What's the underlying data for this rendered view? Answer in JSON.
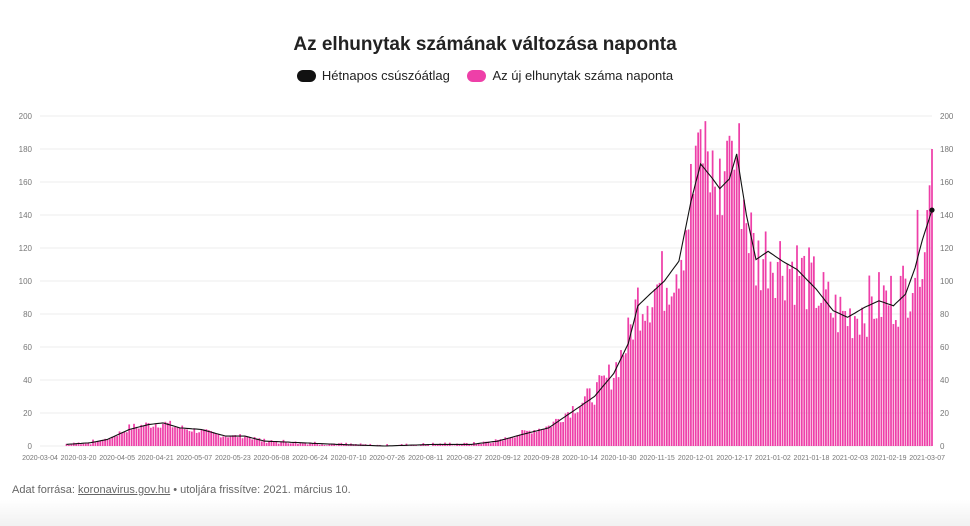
{
  "title": "Az elhunytak számának változása naponta",
  "legend": {
    "avg_label": "Hétnapos csúszóátlag",
    "daily_label": "Az új elhunytak száma naponta"
  },
  "colors": {
    "avg": "#111111",
    "daily": "#ee3fa8",
    "grid": "#ececec"
  },
  "source": {
    "prefix": "Adat forrása: ",
    "link": "koronavirus.gov.hu",
    "suffix": " • utoljára frissítve: 2021. március 10."
  },
  "chart_data": {
    "type": "bar",
    "title": "Az elhunytak számának változása naponta",
    "x_start": "2020-03-04",
    "x_end": "2021-03-09",
    "xticks": [
      "2020-03-04",
      "2020-03-20",
      "2020-04-05",
      "2020-04-21",
      "2020-05-07",
      "2020-05-23",
      "2020-06-08",
      "2020-06-24",
      "2020-07-10",
      "2020-07-26",
      "2020-08-11",
      "2020-08-27",
      "2020-09-12",
      "2020-09-28",
      "2020-10-14",
      "2020-10-30",
      "2020-11-15",
      "2020-12-01",
      "2020-12-17",
      "2021-01-02",
      "2021-01-18",
      "2021-02-03",
      "2021-02-19",
      "2021-03-07"
    ],
    "ylim": [
      0,
      200
    ],
    "yticks": [
      0,
      20,
      40,
      60,
      80,
      100,
      120,
      140,
      160,
      180,
      200
    ],
    "grid": true,
    "legend_position": "top",
    "series": [
      {
        "name": "Az új elhunytak száma naponta",
        "kind": "bar",
        "anchors": [
          [
            "2020-03-15",
            1
          ],
          [
            "2020-03-25",
            2
          ],
          [
            "2020-04-01",
            4
          ],
          [
            "2020-04-10",
            11
          ],
          [
            "2020-04-18",
            13
          ],
          [
            "2020-04-24",
            14
          ],
          [
            "2020-05-01",
            11
          ],
          [
            "2020-05-10",
            9
          ],
          [
            "2020-05-20",
            6
          ],
          [
            "2020-05-28",
            6
          ],
          [
            "2020-06-05",
            3
          ],
          [
            "2020-06-20",
            2
          ],
          [
            "2020-07-05",
            1
          ],
          [
            "2020-07-25",
            0
          ],
          [
            "2020-08-15",
            1
          ],
          [
            "2020-08-30",
            1
          ],
          [
            "2020-09-10",
            3
          ],
          [
            "2020-09-20",
            8
          ],
          [
            "2020-10-01",
            12
          ],
          [
            "2020-10-10",
            22
          ],
          [
            "2020-10-20",
            32
          ],
          [
            "2020-10-28",
            45
          ],
          [
            "2020-11-03",
            65
          ],
          [
            "2020-11-07",
            88
          ],
          [
            "2020-11-12",
            93
          ],
          [
            "2020-11-18",
            100
          ],
          [
            "2020-11-24",
            115
          ],
          [
            "2020-11-29",
            150
          ],
          [
            "2020-12-03",
            172
          ],
          [
            "2020-12-08",
            162
          ],
          [
            "2020-12-11",
            155
          ],
          [
            "2020-12-15",
            162
          ],
          [
            "2020-12-18",
            178
          ],
          [
            "2020-12-22",
            140
          ],
          [
            "2020-12-26",
            112
          ],
          [
            "2020-12-31",
            118
          ],
          [
            "2021-01-06",
            112
          ],
          [
            "2021-01-12",
            108
          ],
          [
            "2021-01-20",
            95
          ],
          [
            "2021-01-27",
            82
          ],
          [
            "2021-02-02",
            78
          ],
          [
            "2021-02-09",
            84
          ],
          [
            "2021-02-15",
            88
          ],
          [
            "2021-02-21",
            90
          ],
          [
            "2021-02-26",
            95
          ],
          [
            "2021-03-02",
            112
          ],
          [
            "2021-03-05",
            128
          ],
          [
            "2021-03-09",
            150
          ]
        ],
        "highlights": [
          [
            "2020-12-01",
            182
          ],
          [
            "2020-12-02",
            190
          ],
          [
            "2020-12-03",
            192
          ],
          [
            "2020-12-14",
            185
          ],
          [
            "2020-12-15",
            188
          ],
          [
            "2020-12-16",
            185
          ],
          [
            "2021-03-08",
            158
          ],
          [
            "2021-03-09",
            180
          ]
        ]
      },
      {
        "name": "Hétnapos csúszóátlag",
        "kind": "line",
        "points": [
          [
            "2020-03-15",
            1
          ],
          [
            "2020-03-25",
            2
          ],
          [
            "2020-04-01",
            4
          ],
          [
            "2020-04-10",
            10
          ],
          [
            "2020-04-18",
            13
          ],
          [
            "2020-04-24",
            14
          ],
          [
            "2020-05-01",
            11
          ],
          [
            "2020-05-10",
            10
          ],
          [
            "2020-05-20",
            6
          ],
          [
            "2020-05-28",
            6
          ],
          [
            "2020-06-05",
            3
          ],
          [
            "2020-06-20",
            2
          ],
          [
            "2020-07-05",
            1
          ],
          [
            "2020-07-25",
            0
          ],
          [
            "2020-08-15",
            1
          ],
          [
            "2020-08-30",
            1
          ],
          [
            "2020-09-10",
            3
          ],
          [
            "2020-09-20",
            7
          ],
          [
            "2020-10-01",
            11
          ],
          [
            "2020-10-10",
            20
          ],
          [
            "2020-10-20",
            30
          ],
          [
            "2020-10-28",
            44
          ],
          [
            "2020-11-03",
            62
          ],
          [
            "2020-11-07",
            85
          ],
          [
            "2020-11-12",
            92
          ],
          [
            "2020-11-18",
            100
          ],
          [
            "2020-11-24",
            112
          ],
          [
            "2020-11-29",
            148
          ],
          [
            "2020-12-03",
            171
          ],
          [
            "2020-12-08",
            162
          ],
          [
            "2020-12-11",
            156
          ],
          [
            "2020-12-15",
            162
          ],
          [
            "2020-12-18",
            177
          ],
          [
            "2020-12-22",
            140
          ],
          [
            "2020-12-26",
            113
          ],
          [
            "2020-12-31",
            118
          ],
          [
            "2021-01-06",
            112
          ],
          [
            "2021-01-12",
            107
          ],
          [
            "2021-01-20",
            95
          ],
          [
            "2021-01-27",
            82
          ],
          [
            "2021-02-02",
            78
          ],
          [
            "2021-02-09",
            84
          ],
          [
            "2021-02-15",
            88
          ],
          [
            "2021-02-21",
            85
          ],
          [
            "2021-02-26",
            92
          ],
          [
            "2021-03-02",
            108
          ],
          [
            "2021-03-05",
            125
          ],
          [
            "2021-03-09",
            143
          ]
        ]
      }
    ]
  }
}
